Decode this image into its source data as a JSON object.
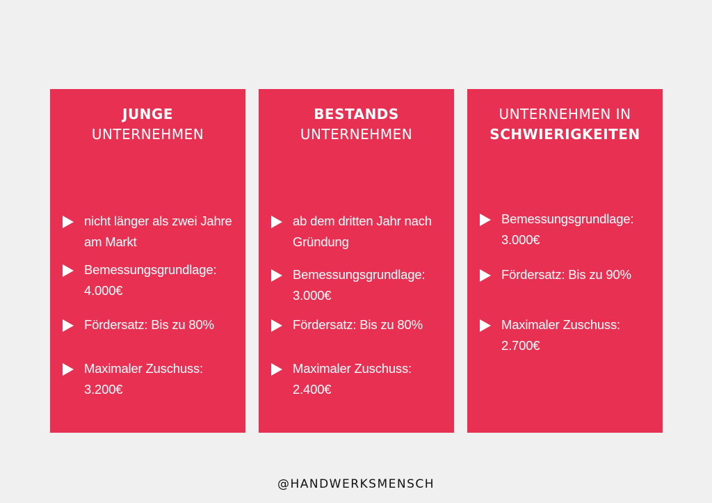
{
  "cards": [
    {
      "title_line1": "JUNGE",
      "title_line2": "UNTERNEHMEN",
      "items": [
        "nicht länger als zwei Jahre am Markt",
        "Bemessungsgrundlage: 4.000€",
        "Fördersatz: Bis zu 80%",
        "Maximaler Zuschuss: 3.200€"
      ]
    },
    {
      "title_line1": "BESTANDS",
      "title_line2": "UNTERNEHMEN",
      "items": [
        "ab dem dritten Jahr nach Gründung",
        "Bemessungsgrundlage: 3.000€",
        "Fördersatz: Bis zu 80%",
        "Maximaler Zuschuss: 2.400€"
      ]
    },
    {
      "title_line1": "UNTERNEHMEN IN",
      "title_line2": "SCHWIERIGKEITEN",
      "items": [
        "Bemessungsgrundlage: 3.000€",
        "Fördersatz: Bis zu 90%",
        "Maximaler Zuschuss: 2.700€"
      ]
    }
  ],
  "footer": "@HANDWERKSMENSCH",
  "colors": {
    "card_background": "#e73052",
    "page_background": "#f0f0f0",
    "text_on_card": "#ffffff"
  },
  "icons": {
    "bullet": "triangle-right-icon"
  }
}
